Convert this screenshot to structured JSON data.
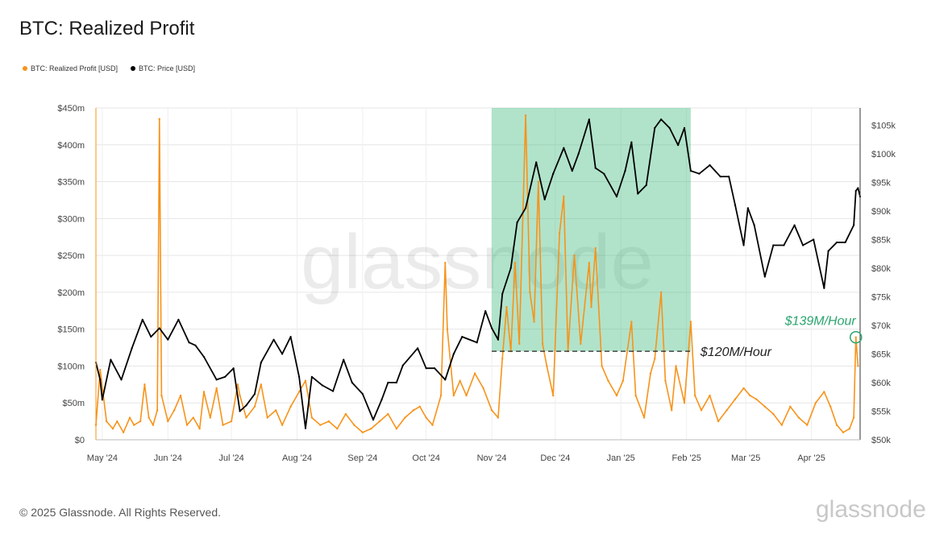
{
  "title": "BTC: Realized Profit",
  "legend": [
    {
      "label": "BTC: Realized Profit [USD]",
      "color": "#f7931a"
    },
    {
      "label": "BTC: Price [USD]",
      "color": "#000000"
    }
  ],
  "footer": "© 2025 Glassnode. All Rights Reserved.",
  "brand": "glassnode",
  "watermark": "glassnode",
  "annotations": {
    "threshold_label": "$120M/Hour",
    "peak_label": "$139M/Hour"
  },
  "chart_data": {
    "type": "line",
    "title": "BTC: Realized Profit",
    "x_tick_labels": [
      "May '24",
      "Jun '24",
      "Jul '24",
      "Aug '24",
      "Sep '24",
      "Oct '24",
      "Nov '24",
      "Dec '24",
      "Jan '25",
      "Feb '25",
      "Mar '25",
      "Apr '25"
    ],
    "x_tick_dates": [
      "2024-05-01",
      "2024-06-01",
      "2024-07-01",
      "2024-08-01",
      "2024-09-01",
      "2024-10-01",
      "2024-11-01",
      "2024-12-01",
      "2025-01-01",
      "2025-02-01",
      "2025-03-01",
      "2025-04-01"
    ],
    "x_range": [
      "2024-04-28",
      "2025-04-24"
    ],
    "y_left": {
      "label": "",
      "range": [
        0,
        450000000
      ],
      "tick_values": [
        0,
        50000000,
        100000000,
        150000000,
        200000000,
        250000000,
        300000000,
        350000000,
        400000000,
        450000000
      ],
      "tick_labels": [
        "$0",
        "$50m",
        "$100m",
        "$150m",
        "$200m",
        "$250m",
        "$300m",
        "$350m",
        "$400m",
        "$450m"
      ]
    },
    "y_right": {
      "label": "",
      "range": [
        50000,
        108000
      ],
      "tick_values": [
        50000,
        55000,
        60000,
        65000,
        70000,
        75000,
        80000,
        85000,
        90000,
        95000,
        100000,
        105000
      ],
      "tick_labels": [
        "$50k",
        "$55k",
        "$60k",
        "$65k",
        "$70k",
        "$75k",
        "$80k",
        "$85k",
        "$90k",
        "$95k",
        "$100k",
        "$105k"
      ]
    },
    "grid": true,
    "legend_position": "top-left",
    "series": [
      {
        "name": "BTC: Realized Profit [USD]",
        "axis": "left",
        "color": "#f7931a",
        "points": [
          [
            "2024-04-28",
            20000000
          ],
          [
            "2024-04-30",
            95000000
          ],
          [
            "2024-05-03",
            25000000
          ],
          [
            "2024-05-06",
            15000000
          ],
          [
            "2024-05-08",
            25000000
          ],
          [
            "2024-05-11",
            10000000
          ],
          [
            "2024-05-14",
            30000000
          ],
          [
            "2024-05-16",
            20000000
          ],
          [
            "2024-05-19",
            25000000
          ],
          [
            "2024-05-21",
            75000000
          ],
          [
            "2024-05-23",
            30000000
          ],
          [
            "2024-05-25",
            20000000
          ],
          [
            "2024-05-27",
            40000000
          ],
          [
            "2024-05-28",
            435000000
          ],
          [
            "2024-05-29",
            60000000
          ],
          [
            "2024-06-01",
            25000000
          ],
          [
            "2024-06-04",
            40000000
          ],
          [
            "2024-06-07",
            60000000
          ],
          [
            "2024-06-10",
            20000000
          ],
          [
            "2024-06-13",
            30000000
          ],
          [
            "2024-06-16",
            15000000
          ],
          [
            "2024-06-18",
            65000000
          ],
          [
            "2024-06-21",
            30000000
          ],
          [
            "2024-06-24",
            70000000
          ],
          [
            "2024-06-27",
            20000000
          ],
          [
            "2024-07-01",
            25000000
          ],
          [
            "2024-07-04",
            75000000
          ],
          [
            "2024-07-05",
            60000000
          ],
          [
            "2024-07-08",
            30000000
          ],
          [
            "2024-07-12",
            45000000
          ],
          [
            "2024-07-15",
            75000000
          ],
          [
            "2024-07-18",
            30000000
          ],
          [
            "2024-07-22",
            40000000
          ],
          [
            "2024-07-25",
            20000000
          ],
          [
            "2024-07-29",
            45000000
          ],
          [
            "2024-08-02",
            65000000
          ],
          [
            "2024-08-05",
            80000000
          ],
          [
            "2024-08-08",
            30000000
          ],
          [
            "2024-08-12",
            20000000
          ],
          [
            "2024-08-16",
            25000000
          ],
          [
            "2024-08-20",
            15000000
          ],
          [
            "2024-08-24",
            35000000
          ],
          [
            "2024-08-28",
            20000000
          ],
          [
            "2024-09-01",
            10000000
          ],
          [
            "2024-09-05",
            15000000
          ],
          [
            "2024-09-09",
            25000000
          ],
          [
            "2024-09-13",
            35000000
          ],
          [
            "2024-09-17",
            15000000
          ],
          [
            "2024-09-21",
            30000000
          ],
          [
            "2024-09-25",
            40000000
          ],
          [
            "2024-09-28",
            45000000
          ],
          [
            "2024-10-01",
            30000000
          ],
          [
            "2024-10-04",
            20000000
          ],
          [
            "2024-10-08",
            60000000
          ],
          [
            "2024-10-10",
            240000000
          ],
          [
            "2024-10-11",
            150000000
          ],
          [
            "2024-10-14",
            60000000
          ],
          [
            "2024-10-17",
            80000000
          ],
          [
            "2024-10-20",
            60000000
          ],
          [
            "2024-10-24",
            90000000
          ],
          [
            "2024-10-28",
            70000000
          ],
          [
            "2024-11-01",
            40000000
          ],
          [
            "2024-11-04",
            30000000
          ],
          [
            "2024-11-06",
            110000000
          ],
          [
            "2024-11-08",
            180000000
          ],
          [
            "2024-11-10",
            120000000
          ],
          [
            "2024-11-12",
            240000000
          ],
          [
            "2024-11-14",
            130000000
          ],
          [
            "2024-11-17",
            440000000
          ],
          [
            "2024-11-19",
            200000000
          ],
          [
            "2024-11-21",
            160000000
          ],
          [
            "2024-11-23",
            350000000
          ],
          [
            "2024-11-25",
            130000000
          ],
          [
            "2024-11-27",
            100000000
          ],
          [
            "2024-11-30",
            60000000
          ],
          [
            "2024-12-03",
            280000000
          ],
          [
            "2024-12-05",
            330000000
          ],
          [
            "2024-12-07",
            120000000
          ],
          [
            "2024-12-10",
            250000000
          ],
          [
            "2024-12-13",
            130000000
          ],
          [
            "2024-12-17",
            240000000
          ],
          [
            "2024-12-18",
            180000000
          ],
          [
            "2024-12-20",
            260000000
          ],
          [
            "2024-12-23",
            100000000
          ],
          [
            "2024-12-26",
            80000000
          ],
          [
            "2024-12-30",
            60000000
          ],
          [
            "2025-01-02",
            80000000
          ],
          [
            "2025-01-06",
            160000000
          ],
          [
            "2025-01-08",
            60000000
          ],
          [
            "2025-01-12",
            30000000
          ],
          [
            "2025-01-15",
            90000000
          ],
          [
            "2025-01-17",
            110000000
          ],
          [
            "2025-01-20",
            200000000
          ],
          [
            "2025-01-22",
            80000000
          ],
          [
            "2025-01-25",
            40000000
          ],
          [
            "2025-01-27",
            100000000
          ],
          [
            "2025-01-31",
            50000000
          ],
          [
            "2025-02-03",
            160000000
          ],
          [
            "2025-02-05",
            60000000
          ],
          [
            "2025-02-08",
            40000000
          ],
          [
            "2025-02-12",
            60000000
          ],
          [
            "2025-02-16",
            25000000
          ],
          [
            "2025-02-20",
            40000000
          ],
          [
            "2025-02-24",
            55000000
          ],
          [
            "2025-02-28",
            70000000
          ],
          [
            "2025-03-03",
            60000000
          ],
          [
            "2025-03-06",
            55000000
          ],
          [
            "2025-03-10",
            45000000
          ],
          [
            "2025-03-14",
            35000000
          ],
          [
            "2025-03-18",
            20000000
          ],
          [
            "2025-03-22",
            45000000
          ],
          [
            "2025-03-26",
            30000000
          ],
          [
            "2025-03-30",
            20000000
          ],
          [
            "2025-04-03",
            50000000
          ],
          [
            "2025-04-07",
            65000000
          ],
          [
            "2025-04-10",
            45000000
          ],
          [
            "2025-04-13",
            20000000
          ],
          [
            "2025-04-16",
            10000000
          ],
          [
            "2025-04-19",
            15000000
          ],
          [
            "2025-04-21",
            30000000
          ],
          [
            "2025-04-22",
            139000000
          ],
          [
            "2025-04-23",
            100000000
          ]
        ]
      },
      {
        "name": "BTC: Price [USD]",
        "axis": "right",
        "color": "#000000",
        "points": [
          [
            "2024-04-28",
            63500
          ],
          [
            "2024-04-30",
            60500
          ],
          [
            "2024-05-01",
            57000
          ],
          [
            "2024-05-05",
            64000
          ],
          [
            "2024-05-10",
            60500
          ],
          [
            "2024-05-15",
            66000
          ],
          [
            "2024-05-20",
            71000
          ],
          [
            "2024-05-24",
            68000
          ],
          [
            "2024-05-28",
            69500
          ],
          [
            "2024-06-01",
            67500
          ],
          [
            "2024-06-06",
            71000
          ],
          [
            "2024-06-11",
            67000
          ],
          [
            "2024-06-14",
            66500
          ],
          [
            "2024-06-18",
            64500
          ],
          [
            "2024-06-24",
            60500
          ],
          [
            "2024-06-28",
            61000
          ],
          [
            "2024-07-02",
            62500
          ],
          [
            "2024-07-05",
            55000
          ],
          [
            "2024-07-08",
            56000
          ],
          [
            "2024-07-12",
            58000
          ],
          [
            "2024-07-15",
            63500
          ],
          [
            "2024-07-21",
            67500
          ],
          [
            "2024-07-25",
            65000
          ],
          [
            "2024-07-29",
            68000
          ],
          [
            "2024-08-02",
            61000
          ],
          [
            "2024-08-05",
            52000
          ],
          [
            "2024-08-08",
            61000
          ],
          [
            "2024-08-13",
            59500
          ],
          [
            "2024-08-18",
            58500
          ],
          [
            "2024-08-23",
            64000
          ],
          [
            "2024-08-27",
            60000
          ],
          [
            "2024-09-01",
            58000
          ],
          [
            "2024-09-06",
            53500
          ],
          [
            "2024-09-10",
            57000
          ],
          [
            "2024-09-13",
            60000
          ],
          [
            "2024-09-17",
            60000
          ],
          [
            "2024-09-20",
            63000
          ],
          [
            "2024-09-27",
            66000
          ],
          [
            "2024-10-01",
            62500
          ],
          [
            "2024-10-05",
            62500
          ],
          [
            "2024-10-10",
            60500
          ],
          [
            "2024-10-14",
            65000
          ],
          [
            "2024-10-18",
            68000
          ],
          [
            "2024-10-25",
            67000
          ],
          [
            "2024-10-29",
            72500
          ],
          [
            "2024-11-01",
            69500
          ],
          [
            "2024-11-04",
            67500
          ],
          [
            "2024-11-06",
            75500
          ],
          [
            "2024-11-10",
            80000
          ],
          [
            "2024-11-13",
            88000
          ],
          [
            "2024-11-17",
            90500
          ],
          [
            "2024-11-22",
            98500
          ],
          [
            "2024-11-26",
            92000
          ],
          [
            "2024-11-30",
            96500
          ],
          [
            "2024-12-05",
            101000
          ],
          [
            "2024-12-09",
            97000
          ],
          [
            "2024-12-12",
            100000
          ],
          [
            "2024-12-17",
            106000
          ],
          [
            "2024-12-20",
            97500
          ],
          [
            "2024-12-24",
            96500
          ],
          [
            "2024-12-30",
            92500
          ],
          [
            "2025-01-03",
            97000
          ],
          [
            "2025-01-06",
            102000
          ],
          [
            "2025-01-09",
            93000
          ],
          [
            "2025-01-13",
            94500
          ],
          [
            "2025-01-17",
            104500
          ],
          [
            "2025-01-20",
            106000
          ],
          [
            "2025-01-24",
            104500
          ],
          [
            "2025-01-28",
            101500
          ],
          [
            "2025-01-31",
            104500
          ],
          [
            "2025-02-03",
            97000
          ],
          [
            "2025-02-07",
            96500
          ],
          [
            "2025-02-12",
            98000
          ],
          [
            "2025-02-17",
            96000
          ],
          [
            "2025-02-21",
            96000
          ],
          [
            "2025-02-24",
            91000
          ],
          [
            "2025-02-28",
            84000
          ],
          [
            "2025-03-02",
            90500
          ],
          [
            "2025-03-05",
            87500
          ],
          [
            "2025-03-10",
            78500
          ],
          [
            "2025-03-14",
            84000
          ],
          [
            "2025-03-19",
            84000
          ],
          [
            "2025-03-24",
            87500
          ],
          [
            "2025-03-28",
            84000
          ],
          [
            "2025-04-02",
            85000
          ],
          [
            "2025-04-07",
            76500
          ],
          [
            "2025-04-09",
            83000
          ],
          [
            "2025-04-13",
            84500
          ],
          [
            "2025-04-17",
            84500
          ],
          [
            "2025-04-21",
            87500
          ],
          [
            "2025-04-22",
            93500
          ],
          [
            "2025-04-23",
            94000
          ],
          [
            "2025-04-24",
            92500
          ]
        ]
      }
    ],
    "shaded_region": {
      "x_start": "2024-11-01",
      "x_end": "2025-02-03",
      "y_bottom": 120000000,
      "y_top": 450000000,
      "color": "#3dba7e",
      "opacity": 0.4
    },
    "reference_line": {
      "y": 120000000,
      "x_start": "2024-11-01",
      "x_end": "2025-02-03",
      "label": "$120M/Hour",
      "style": "dashed",
      "color": "#222222"
    },
    "highlight_point": {
      "x": "2025-04-22",
      "y": 139000000,
      "label": "$139M/Hour",
      "color": "#2ba56f"
    }
  }
}
